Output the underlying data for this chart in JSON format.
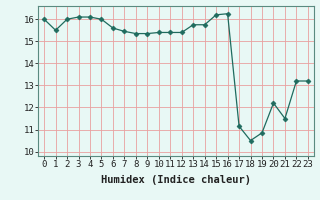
{
  "x": [
    0,
    1,
    2,
    3,
    4,
    5,
    6,
    7,
    8,
    9,
    10,
    11,
    12,
    13,
    14,
    15,
    16,
    17,
    18,
    19,
    20,
    21,
    22,
    23
  ],
  "y": [
    16.0,
    15.5,
    16.0,
    16.1,
    16.1,
    16.0,
    15.6,
    15.45,
    15.35,
    15.35,
    15.4,
    15.4,
    15.4,
    15.75,
    15.75,
    16.2,
    16.25,
    11.15,
    10.5,
    10.85,
    12.2,
    11.5,
    13.2,
    13.2
  ],
  "line_color": "#1F6B5E",
  "marker": "D",
  "marker_size": 2.5,
  "bg_color": "#E8F8F5",
  "grid_color": "#E8A0A0",
  "xlabel": "Humidex (Indice chaleur)",
  "ylim": [
    9.8,
    16.6
  ],
  "xlim": [
    -0.5,
    23.5
  ],
  "yticks": [
    10,
    11,
    12,
    13,
    14,
    15,
    16
  ],
  "xticks": [
    0,
    1,
    2,
    3,
    4,
    5,
    6,
    7,
    8,
    9,
    10,
    11,
    12,
    13,
    14,
    15,
    16,
    17,
    18,
    19,
    20,
    21,
    22,
    23
  ],
  "xtick_labels": [
    "0",
    "1",
    "2",
    "3",
    "4",
    "5",
    "6",
    "7",
    "8",
    "9",
    "10",
    "11",
    "12",
    "13",
    "14",
    "15",
    "16",
    "17",
    "18",
    "19",
    "20",
    "21",
    "22",
    "23"
  ],
  "font_size": 6.5,
  "xlabel_fontsize": 7.5
}
